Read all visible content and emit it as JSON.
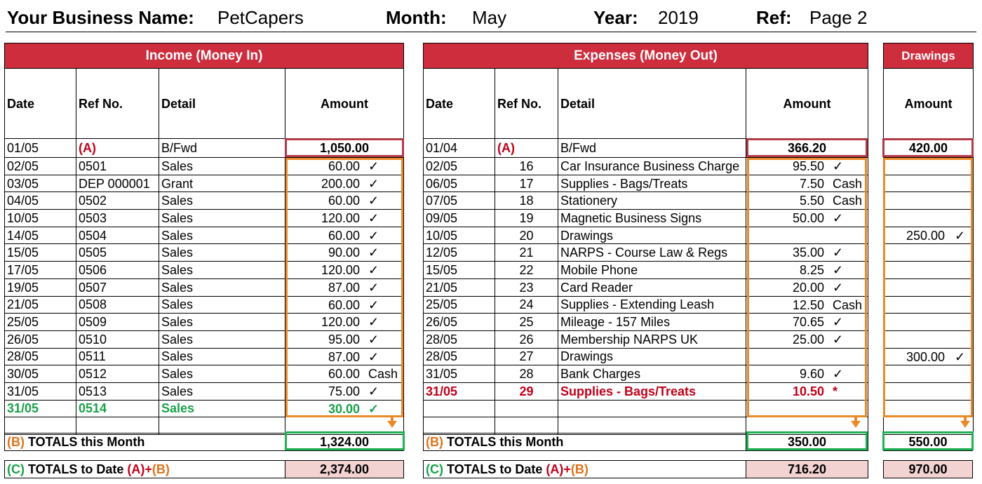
{
  "header": {
    "business_label": "Your Business Name:",
    "business_value": "PetCapers",
    "month_label": "Month:",
    "month_value": "May",
    "year_label": "Year:",
    "year_value": "2019",
    "ref_label": "Ref:",
    "ref_value": "Page 2"
  },
  "income": {
    "title": "Income (Money In)",
    "columns": [
      "Date",
      "Ref No.",
      "Detail",
      "Amount"
    ],
    "bfwd": {
      "date": "01/05",
      "ref": "(A)",
      "detail": "B/Fwd",
      "amount": "1,050.00"
    },
    "rows": [
      {
        "date": "02/05",
        "ref": "0501",
        "detail": "Sales",
        "amount": "60.00",
        "mark": "✓"
      },
      {
        "date": "03/05",
        "ref": "DEP 000001",
        "detail": "Grant",
        "amount": "200.00",
        "mark": "✓"
      },
      {
        "date": "04/05",
        "ref": "0502",
        "detail": "Sales",
        "amount": "60.00",
        "mark": "✓"
      },
      {
        "date": "10/05",
        "ref": "0503",
        "detail": "Sales",
        "amount": "120.00",
        "mark": "✓"
      },
      {
        "date": "14/05",
        "ref": "0504",
        "detail": "Sales",
        "amount": "60.00",
        "mark": "✓"
      },
      {
        "date": "15/05",
        "ref": "0505",
        "detail": "Sales",
        "amount": "90.00",
        "mark": "✓"
      },
      {
        "date": "17/05",
        "ref": "0506",
        "detail": "Sales",
        "amount": "120.00",
        "mark": "✓"
      },
      {
        "date": "19/05",
        "ref": "0507",
        "detail": "Sales",
        "amount": "87.00",
        "mark": "✓"
      },
      {
        "date": "21/05",
        "ref": "0508",
        "detail": "Sales",
        "amount": "60.00",
        "mark": "✓"
      },
      {
        "date": "25/05",
        "ref": "0509",
        "detail": "Sales",
        "amount": "120.00",
        "mark": "✓"
      },
      {
        "date": "26/05",
        "ref": "0510",
        "detail": "Sales",
        "amount": "95.00",
        "mark": "✓"
      },
      {
        "date": "28/05",
        "ref": "0511",
        "detail": "Sales",
        "amount": "87.00",
        "mark": "✓"
      },
      {
        "date": "30/05",
        "ref": "0512",
        "detail": "Sales",
        "amount": "60.00",
        "mark": "Cash"
      },
      {
        "date": "31/05",
        "ref": "0513",
        "detail": "Sales",
        "amount": "75.00",
        "mark": "✓"
      },
      {
        "date": "31/05",
        "ref": "0514",
        "detail": "Sales",
        "amount": "30.00",
        "mark": "✓"
      }
    ],
    "total_month_prefix": "(B)",
    "total_month_label": "TOTALS this Month",
    "total_month": "1,324.00",
    "total_date_prefix": "(C)",
    "total_date_label": "TOTALS to Date",
    "total_date_a": "(A)",
    "total_date_plus": "+",
    "total_date_b": "(B)",
    "total_date": "2,374.00"
  },
  "expenses": {
    "title": "Expenses (Money Out)",
    "columns": [
      "Date",
      "Ref No.",
      "Detail",
      "Amount"
    ],
    "bfwd": {
      "date": "01/04",
      "ref": "(A)",
      "detail": "B/Fwd",
      "amount": "366.20"
    },
    "rows": [
      {
        "date": "02/05",
        "ref": "16",
        "detail": "Car Insurance Business Charge",
        "amount": "95.50",
        "mark": "✓"
      },
      {
        "date": "06/05",
        "ref": "17",
        "detail": "Supplies - Bags/Treats",
        "amount": "7.50",
        "mark": "Cash"
      },
      {
        "date": "07/05",
        "ref": "18",
        "detail": "Stationery",
        "amount": "5.50",
        "mark": "Cash"
      },
      {
        "date": "09/05",
        "ref": "19",
        "detail": "Magnetic Business Signs",
        "amount": "50.00",
        "mark": "✓"
      },
      {
        "date": "10/05",
        "ref": "20",
        "detail": "Drawings",
        "amount": "",
        "mark": ""
      },
      {
        "date": "12/05",
        "ref": "21",
        "detail": "NARPS - Course Law & Regs",
        "amount": "35.00",
        "mark": "✓"
      },
      {
        "date": "15/05",
        "ref": "22",
        "detail": "Mobile Phone",
        "amount": "8.25",
        "mark": "✓"
      },
      {
        "date": "21/05",
        "ref": "23",
        "detail": "Card Reader",
        "amount": "20.00",
        "mark": "✓"
      },
      {
        "date": "25/05",
        "ref": "24",
        "detail": "Supplies - Extending Leash",
        "amount": "12.50",
        "mark": "Cash"
      },
      {
        "date": "26/05",
        "ref": "25",
        "detail": "Mileage  - 157 Miles",
        "amount": "70.65",
        "mark": "✓"
      },
      {
        "date": "28/05",
        "ref": "26",
        "detail": "Membership NARPS UK",
        "amount": "25.00",
        "mark": "✓"
      },
      {
        "date": "28/05",
        "ref": "27",
        "detail": "Drawings",
        "amount": "",
        "mark": ""
      },
      {
        "date": "31/05",
        "ref": "28",
        "detail": "Bank Charges",
        "amount": "9.60",
        "mark": "✓"
      },
      {
        "date": "31/05",
        "ref": "29",
        "detail": "Supplies - Bags/Treats",
        "amount": "10.50",
        "mark": "*"
      },
      {
        "date": "",
        "ref": "",
        "detail": "",
        "amount": "",
        "mark": ""
      }
    ],
    "total_month_prefix": "(B)",
    "total_month_label": "TOTALS this Month",
    "total_month": "350.00",
    "total_date_prefix": "(C)",
    "total_date_label": "TOTALS to Date",
    "total_date_a": "(A)",
    "total_date_plus": "+",
    "total_date_b": "(B)",
    "total_date": "716.20"
  },
  "drawings": {
    "title": "Drawings",
    "column": "Amount",
    "bfwd": "420.00",
    "rows": [
      {
        "amount": "",
        "mark": ""
      },
      {
        "amount": "",
        "mark": ""
      },
      {
        "amount": "",
        "mark": ""
      },
      {
        "amount": "",
        "mark": ""
      },
      {
        "amount": "250.00",
        "mark": "✓"
      },
      {
        "amount": "",
        "mark": ""
      },
      {
        "amount": "",
        "mark": ""
      },
      {
        "amount": "",
        "mark": ""
      },
      {
        "amount": "",
        "mark": ""
      },
      {
        "amount": "",
        "mark": ""
      },
      {
        "amount": "",
        "mark": ""
      },
      {
        "amount": "300.00",
        "mark": "✓"
      },
      {
        "amount": "",
        "mark": ""
      },
      {
        "amount": "",
        "mark": ""
      },
      {
        "amount": "",
        "mark": ""
      }
    ],
    "total_month": "550.00",
    "total_date": "970.00"
  },
  "colors": {
    "title_red": "#cd2d3d",
    "highlight_red": "#b23a48",
    "highlight_orange": "#e98a2a",
    "highlight_green": "#1fb153",
    "to_date_fill": "#f2d3d2",
    "new_entry_green": "#1aa14a",
    "new_entry_red": "#c0001a"
  }
}
